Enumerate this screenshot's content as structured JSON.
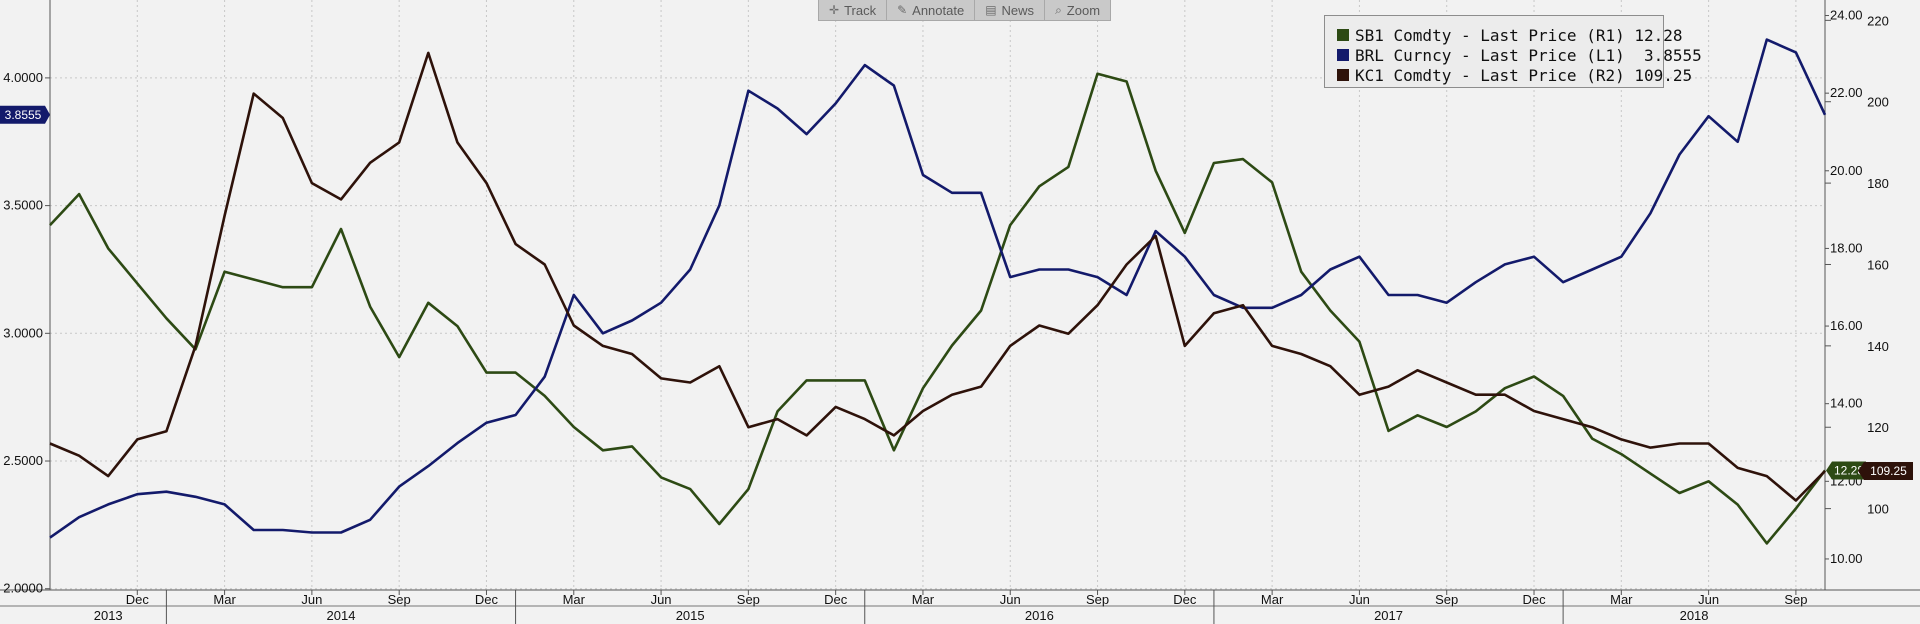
{
  "toolbar": {
    "items": [
      {
        "label": "Track",
        "icon": "crosshair-icon",
        "glyph": "✛"
      },
      {
        "label": "Annotate",
        "icon": "pencil-icon",
        "glyph": "✎"
      },
      {
        "label": "News",
        "icon": "news-icon",
        "glyph": "▤"
      },
      {
        "label": "Zoom",
        "icon": "magnifier-icon",
        "glyph": "⌕"
      }
    ]
  },
  "legend": {
    "items": [
      {
        "text": "SB1 Comdty - Last Price (R1) 12.28",
        "color": "#2d4a14"
      },
      {
        "text": "BRL Curncy - Last Price (L1)  3.8555",
        "color": "#131a6b"
      },
      {
        "text": "KC1 Comdty - Last Price (R2) 109.25",
        "color": "#2e120a"
      }
    ]
  },
  "chart_data": {
    "type": "line",
    "title": "",
    "grid": true,
    "legend_position": "top-right",
    "x_start": "2013-09",
    "x_end": "2018-10",
    "month_ticks": [
      {
        "label": "Dec",
        "date": "2013-12"
      },
      {
        "label": "Mar",
        "date": "2014-03"
      },
      {
        "label": "Jun",
        "date": "2014-06"
      },
      {
        "label": "Sep",
        "date": "2014-09"
      },
      {
        "label": "Dec",
        "date": "2014-12"
      },
      {
        "label": "Mar",
        "date": "2015-03"
      },
      {
        "label": "Jun",
        "date": "2015-06"
      },
      {
        "label": "Sep",
        "date": "2015-09"
      },
      {
        "label": "Dec",
        "date": "2015-12"
      },
      {
        "label": "Mar",
        "date": "2016-03"
      },
      {
        "label": "Jun",
        "date": "2016-06"
      },
      {
        "label": "Sep",
        "date": "2016-09"
      },
      {
        "label": "Dec",
        "date": "2016-12"
      },
      {
        "label": "Mar",
        "date": "2017-03"
      },
      {
        "label": "Jun",
        "date": "2017-06"
      },
      {
        "label": "Sep",
        "date": "2017-09"
      },
      {
        "label": "Dec",
        "date": "2017-12"
      },
      {
        "label": "Mar",
        "date": "2018-03"
      },
      {
        "label": "Jun",
        "date": "2018-06"
      },
      {
        "label": "Sep",
        "date": "2018-09"
      }
    ],
    "year_labels": [
      "2013",
      "2014",
      "2015",
      "2016",
      "2017",
      "2018"
    ],
    "left_axis": {
      "ticks": [
        "2.0000",
        "2.5000",
        "3.0000",
        "3.5000",
        "4.0000"
      ],
      "range": [
        1.995,
        4.305
      ]
    },
    "right_axis_R1": {
      "ticks": [
        "10.00",
        "12.00",
        "14.00",
        "16.00",
        "18.00",
        "20.00",
        "22.00",
        "24.00"
      ],
      "range": [
        9.2,
        24.4
      ]
    },
    "right_axis_R2": {
      "ticks": [
        "100",
        "120",
        "140",
        "160",
        "180",
        "200",
        "220"
      ],
      "range": [
        80,
        225
      ]
    },
    "series": [
      {
        "name": "SB1 Comdty - Last Price (R1)",
        "axis": "R1",
        "color": "#2d4a14",
        "last_label": "12.28",
        "points": [
          [
            "2013-09",
            18.6
          ],
          [
            "2013-10",
            19.4
          ],
          [
            "2013-11",
            18.0
          ],
          [
            "2013-12",
            17.1
          ],
          [
            "2014-01",
            16.2
          ],
          [
            "2014-02",
            15.4
          ],
          [
            "2014-03",
            17.4
          ],
          [
            "2014-04",
            17.2
          ],
          [
            "2014-05",
            17.0
          ],
          [
            "2014-06",
            17.0
          ],
          [
            "2014-07",
            18.5
          ],
          [
            "2014-08",
            16.5
          ],
          [
            "2014-09",
            15.2
          ],
          [
            "2014-10",
            16.6
          ],
          [
            "2014-11",
            16.0
          ],
          [
            "2014-12",
            14.8
          ],
          [
            "2015-01",
            14.8
          ],
          [
            "2015-02",
            14.2
          ],
          [
            "2015-03",
            13.4
          ],
          [
            "2015-04",
            12.8
          ],
          [
            "2015-05",
            12.9
          ],
          [
            "2015-06",
            12.1
          ],
          [
            "2015-07",
            11.8
          ],
          [
            "2015-08",
            10.9
          ],
          [
            "2015-09",
            11.8
          ],
          [
            "2015-10",
            13.8
          ],
          [
            "2015-11",
            14.6
          ],
          [
            "2015-12",
            14.6
          ],
          [
            "2016-01",
            14.6
          ],
          [
            "2016-02",
            12.8
          ],
          [
            "2016-03",
            14.4
          ],
          [
            "2016-04",
            15.5
          ],
          [
            "2016-05",
            16.4
          ],
          [
            "2016-06",
            18.6
          ],
          [
            "2016-07",
            19.6
          ],
          [
            "2016-08",
            20.1
          ],
          [
            "2016-09",
            22.5
          ],
          [
            "2016-10",
            22.3
          ],
          [
            "2016-11",
            20.0
          ],
          [
            "2016-12",
            18.4
          ],
          [
            "2017-01",
            20.2
          ],
          [
            "2017-02",
            20.3
          ],
          [
            "2017-03",
            19.7
          ],
          [
            "2017-04",
            17.4
          ],
          [
            "2017-05",
            16.4
          ],
          [
            "2017-06",
            15.6
          ],
          [
            "2017-07",
            13.3
          ],
          [
            "2017-08",
            13.7
          ],
          [
            "2017-09",
            13.4
          ],
          [
            "2017-10",
            13.8
          ],
          [
            "2017-11",
            14.4
          ],
          [
            "2017-12",
            14.7
          ],
          [
            "2018-01",
            14.2
          ],
          [
            "2018-02",
            13.1
          ],
          [
            "2018-03",
            12.7
          ],
          [
            "2018-04",
            12.2
          ],
          [
            "2018-05",
            11.7
          ],
          [
            "2018-06",
            12.0
          ],
          [
            "2018-07",
            11.4
          ],
          [
            "2018-08",
            10.4
          ],
          [
            "2018-09",
            11.3
          ],
          [
            "2018-10",
            12.28
          ]
        ]
      },
      {
        "name": "BRL Curncy - Last Price (L1)",
        "axis": "L1",
        "color": "#131a6b",
        "last_label": "3.8555",
        "points": [
          [
            "2013-09",
            2.2
          ],
          [
            "2013-10",
            2.28
          ],
          [
            "2013-11",
            2.33
          ],
          [
            "2013-12",
            2.37
          ],
          [
            "2014-01",
            2.38
          ],
          [
            "2014-02",
            2.36
          ],
          [
            "2014-03",
            2.33
          ],
          [
            "2014-04",
            2.23
          ],
          [
            "2014-05",
            2.23
          ],
          [
            "2014-06",
            2.22
          ],
          [
            "2014-07",
            2.22
          ],
          [
            "2014-08",
            2.27
          ],
          [
            "2014-09",
            2.4
          ],
          [
            "2014-10",
            2.48
          ],
          [
            "2014-11",
            2.57
          ],
          [
            "2014-12",
            2.65
          ],
          [
            "2015-01",
            2.68
          ],
          [
            "2015-02",
            2.83
          ],
          [
            "2015-03",
            3.15
          ],
          [
            "2015-04",
            3.0
          ],
          [
            "2015-05",
            3.05
          ],
          [
            "2015-06",
            3.12
          ],
          [
            "2015-07",
            3.25
          ],
          [
            "2015-08",
            3.5
          ],
          [
            "2015-09",
            3.95
          ],
          [
            "2015-10",
            3.88
          ],
          [
            "2015-11",
            3.78
          ],
          [
            "2015-12",
            3.9
          ],
          [
            "2016-01",
            4.05
          ],
          [
            "2016-02",
            3.97
          ],
          [
            "2016-03",
            3.62
          ],
          [
            "2016-04",
            3.55
          ],
          [
            "2016-05",
            3.55
          ],
          [
            "2016-06",
            3.22
          ],
          [
            "2016-07",
            3.25
          ],
          [
            "2016-08",
            3.25
          ],
          [
            "2016-09",
            3.22
          ],
          [
            "2016-10",
            3.15
          ],
          [
            "2016-11",
            3.4
          ],
          [
            "2016-12",
            3.3
          ],
          [
            "2017-01",
            3.15
          ],
          [
            "2017-02",
            3.1
          ],
          [
            "2017-03",
            3.1
          ],
          [
            "2017-04",
            3.15
          ],
          [
            "2017-05",
            3.25
          ],
          [
            "2017-06",
            3.3
          ],
          [
            "2017-07",
            3.15
          ],
          [
            "2017-08",
            3.15
          ],
          [
            "2017-09",
            3.12
          ],
          [
            "2017-10",
            3.2
          ],
          [
            "2017-11",
            3.27
          ],
          [
            "2017-12",
            3.3
          ],
          [
            "2018-01",
            3.2
          ],
          [
            "2018-02",
            3.25
          ],
          [
            "2018-03",
            3.3
          ],
          [
            "2018-04",
            3.47
          ],
          [
            "2018-05",
            3.7
          ],
          [
            "2018-06",
            3.85
          ],
          [
            "2018-07",
            3.75
          ],
          [
            "2018-08",
            4.15
          ],
          [
            "2018-09",
            4.1
          ],
          [
            "2018-10",
            3.8555
          ]
        ]
      },
      {
        "name": "KC1 Comdty - Last Price (R2)",
        "axis": "R2",
        "color": "#2e120a",
        "last_label": "109.25",
        "points": [
          [
            "2013-09",
            116
          ],
          [
            "2013-10",
            113
          ],
          [
            "2013-11",
            108
          ],
          [
            "2013-12",
            117
          ],
          [
            "2014-01",
            119
          ],
          [
            "2014-02",
            140
          ],
          [
            "2014-03",
            172
          ],
          [
            "2014-04",
            202
          ],
          [
            "2014-05",
            196
          ],
          [
            "2014-06",
            180
          ],
          [
            "2014-07",
            176
          ],
          [
            "2014-08",
            185
          ],
          [
            "2014-09",
            190
          ],
          [
            "2014-10",
            212
          ],
          [
            "2014-11",
            190
          ],
          [
            "2014-12",
            180
          ],
          [
            "2015-01",
            165
          ],
          [
            "2015-02",
            160
          ],
          [
            "2015-03",
            145
          ],
          [
            "2015-04",
            140
          ],
          [
            "2015-05",
            138
          ],
          [
            "2015-06",
            132
          ],
          [
            "2015-07",
            131
          ],
          [
            "2015-08",
            135
          ],
          [
            "2015-09",
            120
          ],
          [
            "2015-10",
            122
          ],
          [
            "2015-11",
            118
          ],
          [
            "2015-12",
            125
          ],
          [
            "2016-01",
            122
          ],
          [
            "2016-02",
            118
          ],
          [
            "2016-03",
            124
          ],
          [
            "2016-04",
            128
          ],
          [
            "2016-05",
            130
          ],
          [
            "2016-06",
            140
          ],
          [
            "2016-07",
            145
          ],
          [
            "2016-08",
            143
          ],
          [
            "2016-09",
            150
          ],
          [
            "2016-10",
            160
          ],
          [
            "2016-11",
            167
          ],
          [
            "2016-12",
            140
          ],
          [
            "2017-01",
            148
          ],
          [
            "2017-02",
            150
          ],
          [
            "2017-03",
            140
          ],
          [
            "2017-04",
            138
          ],
          [
            "2017-05",
            135
          ],
          [
            "2017-06",
            128
          ],
          [
            "2017-07",
            130
          ],
          [
            "2017-08",
            134
          ],
          [
            "2017-09",
            131
          ],
          [
            "2017-10",
            128
          ],
          [
            "2017-11",
            128
          ],
          [
            "2017-12",
            124
          ],
          [
            "2018-01",
            122
          ],
          [
            "2018-02",
            120
          ],
          [
            "2018-03",
            117
          ],
          [
            "2018-04",
            115
          ],
          [
            "2018-05",
            116
          ],
          [
            "2018-06",
            116
          ],
          [
            "2018-07",
            110
          ],
          [
            "2018-08",
            108
          ],
          [
            "2018-09",
            102
          ],
          [
            "2018-10",
            109.25
          ]
        ]
      }
    ]
  }
}
